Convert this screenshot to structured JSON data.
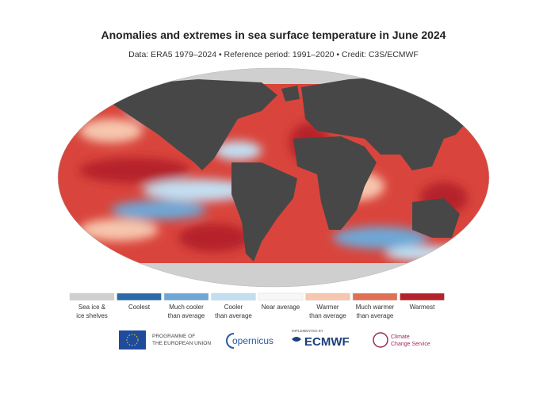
{
  "header": {
    "title": "Anomalies and extremes in sea surface temperature in June 2024",
    "subtitle": "Data: ERA5 1979–2024 • Reference period: 1991–2020 • Credit: C3S/ECMWF"
  },
  "legend": [
    {
      "lines": [
        "Sea ice &",
        "ice shelves"
      ],
      "color": "#cfcfcf"
    },
    {
      "lines": [
        "Coolest"
      ],
      "color": "#2b6aa8"
    },
    {
      "lines": [
        "Much cooler",
        "than average"
      ],
      "color": "#6ea7d6"
    },
    {
      "lines": [
        "Cooler",
        "than average"
      ],
      "color": "#c3def0"
    },
    {
      "lines": [
        "Near average"
      ],
      "color": "#f7f7f7"
    },
    {
      "lines": [
        "Warmer",
        "than average"
      ],
      "color": "#f6c6ad"
    },
    {
      "lines": [
        "Much warmer",
        "than average"
      ],
      "color": "#df6f55"
    },
    {
      "lines": [
        "Warmest"
      ],
      "color": "#b5232a"
    }
  ],
  "logos": {
    "eu": [
      "PROGRAMME OF",
      "THE EUROPEAN UNION"
    ],
    "copernicus": "opernicus",
    "implemented": "IMPLEMENTED BY",
    "ecmwf": "ECMWF",
    "c3s": [
      "Climate",
      "Change Service"
    ]
  }
}
